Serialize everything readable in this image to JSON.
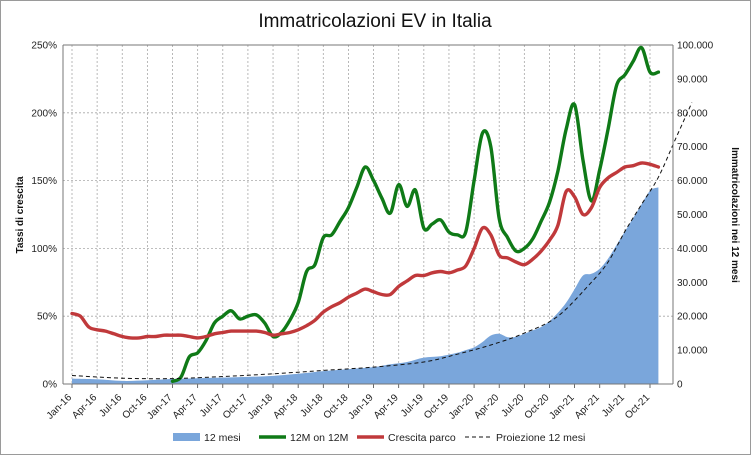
{
  "chart_data": {
    "type": "line",
    "title": "Immatricolazioni EV in Italia",
    "ylabel_left": "Tassi di crescita",
    "ylabel_right": "Immatricolazioni nei 12 mesi",
    "ylim_left": [
      0,
      250
    ],
    "ylim_right": [
      0,
      100000
    ],
    "yticks_left": [
      "0%",
      "50%",
      "100%",
      "150%",
      "200%",
      "250%"
    ],
    "yticks_right": [
      "0",
      "10.000",
      "20.000",
      "30.000",
      "40.000",
      "50.000",
      "60.000",
      "70.000",
      "80.000",
      "90.000",
      "100.000"
    ],
    "xticks": [
      "Jan-16",
      "Apr-16",
      "Jul-16",
      "Oct-16",
      "Jan-17",
      "Apr-17",
      "Jul-17",
      "Oct-17",
      "Jan-18",
      "Apr-18",
      "Jul-18",
      "Oct-18",
      "Jan-19",
      "Apr-19",
      "Jul-19",
      "Oct-19",
      "Jan-20",
      "Apr-20",
      "Jul-20",
      "Oct-20",
      "Jan-21",
      "Apr-21",
      "Jul-21",
      "Oct-21"
    ],
    "legend_position": "bottom",
    "colors": {
      "area": "#7aa6db",
      "green": "#0f7a17",
      "red": "#c0393b",
      "projection": "#111111",
      "grid": "#a8a8a8"
    },
    "series": [
      {
        "name": "12 mesi",
        "kind": "area",
        "axis": "right",
        "points": [
          [
            0,
            1600
          ],
          [
            3,
            1400
          ],
          [
            6,
            900
          ],
          [
            9,
            1100
          ],
          [
            12,
            1500
          ],
          [
            15,
            1700
          ],
          [
            18,
            1900
          ],
          [
            21,
            2100
          ],
          [
            24,
            2400
          ],
          [
            27,
            3000
          ],
          [
            30,
            3800
          ],
          [
            33,
            4400
          ],
          [
            36,
            5000
          ],
          [
            38,
            5800
          ],
          [
            40,
            6500
          ],
          [
            42,
            7800
          ],
          [
            44,
            8200
          ],
          [
            46,
            9200
          ],
          [
            47,
            10000
          ],
          [
            48,
            10800
          ],
          [
            49,
            12400
          ],
          [
            50,
            14300
          ],
          [
            51,
            14800
          ],
          [
            52,
            13800
          ],
          [
            53,
            13900
          ],
          [
            54,
            14800
          ],
          [
            55,
            15800
          ],
          [
            56,
            16800
          ],
          [
            57,
            18500
          ],
          [
            58,
            21000
          ],
          [
            59,
            24000
          ],
          [
            60,
            28000
          ],
          [
            61,
            32000
          ],
          [
            62,
            32500
          ],
          [
            63,
            34000
          ],
          [
            64,
            37000
          ],
          [
            65,
            41000
          ],
          [
            66,
            45000
          ],
          [
            67,
            49000
          ],
          [
            68,
            53000
          ],
          [
            69,
            57000
          ],
          [
            70,
            58000
          ]
        ]
      },
      {
        "name": "12M on 12M",
        "kind": "line",
        "axis": "left",
        "points": [
          [
            12,
            2
          ],
          [
            13,
            5
          ],
          [
            14,
            20
          ],
          [
            15,
            23
          ],
          [
            16,
            32
          ],
          [
            17,
            45
          ],
          [
            18,
            50
          ],
          [
            19,
            54
          ],
          [
            20,
            48
          ],
          [
            21,
            50
          ],
          [
            22,
            51
          ],
          [
            23,
            45
          ],
          [
            24,
            35
          ],
          [
            25,
            38
          ],
          [
            26,
            47
          ],
          [
            27,
            60
          ],
          [
            28,
            83
          ],
          [
            29,
            88
          ],
          [
            30,
            108
          ],
          [
            31,
            110
          ],
          [
            32,
            120
          ],
          [
            33,
            130
          ],
          [
            34,
            145
          ],
          [
            35,
            160
          ],
          [
            36,
            150
          ],
          [
            37,
            137
          ],
          [
            38,
            126
          ],
          [
            39,
            147
          ],
          [
            40,
            131
          ],
          [
            41,
            143
          ],
          [
            42,
            115
          ],
          [
            43,
            118
          ],
          [
            44,
            121
          ],
          [
            45,
            112
          ],
          [
            46,
            110
          ],
          [
            47,
            112
          ],
          [
            48,
            150
          ],
          [
            49,
            185
          ],
          [
            50,
            175
          ],
          [
            51,
            122
          ],
          [
            52,
            108
          ],
          [
            53,
            98
          ],
          [
            54,
            100
          ],
          [
            55,
            107
          ],
          [
            56,
            120
          ],
          [
            57,
            134
          ],
          [
            58,
            157
          ],
          [
            59,
            188
          ],
          [
            60,
            206
          ],
          [
            61,
            165
          ],
          [
            62,
            135
          ],
          [
            63,
            158
          ],
          [
            64,
            188
          ],
          [
            65,
            220
          ],
          [
            66,
            228
          ],
          [
            67,
            238
          ],
          [
            68,
            248
          ],
          [
            69,
            230
          ],
          [
            70,
            230
          ]
        ]
      },
      {
        "name": "Crescita parco",
        "kind": "line",
        "axis": "left",
        "points": [
          [
            0,
            52
          ],
          [
            1,
            50
          ],
          [
            2,
            42
          ],
          [
            3,
            40
          ],
          [
            4,
            39
          ],
          [
            5,
            37
          ],
          [
            6,
            35
          ],
          [
            7,
            34
          ],
          [
            8,
            34
          ],
          [
            9,
            35
          ],
          [
            10,
            35
          ],
          [
            11,
            36
          ],
          [
            12,
            36
          ],
          [
            13,
            36
          ],
          [
            14,
            35
          ],
          [
            15,
            34
          ],
          [
            16,
            35
          ],
          [
            17,
            37
          ],
          [
            18,
            38
          ],
          [
            19,
            39
          ],
          [
            20,
            39
          ],
          [
            21,
            39
          ],
          [
            22,
            39
          ],
          [
            23,
            38
          ],
          [
            24,
            36
          ],
          [
            25,
            37
          ],
          [
            26,
            38
          ],
          [
            27,
            40
          ],
          [
            28,
            43
          ],
          [
            29,
            47
          ],
          [
            30,
            53
          ],
          [
            31,
            57
          ],
          [
            32,
            60
          ],
          [
            33,
            64
          ],
          [
            34,
            67
          ],
          [
            35,
            70
          ],
          [
            36,
            68
          ],
          [
            37,
            66
          ],
          [
            38,
            66
          ],
          [
            39,
            72
          ],
          [
            40,
            76
          ],
          [
            41,
            80
          ],
          [
            42,
            80
          ],
          [
            43,
            82
          ],
          [
            44,
            83
          ],
          [
            45,
            82
          ],
          [
            46,
            84
          ],
          [
            47,
            87
          ],
          [
            48,
            100
          ],
          [
            49,
            115
          ],
          [
            50,
            110
          ],
          [
            51,
            95
          ],
          [
            52,
            93
          ],
          [
            53,
            90
          ],
          [
            54,
            88
          ],
          [
            55,
            92
          ],
          [
            56,
            98
          ],
          [
            57,
            106
          ],
          [
            58,
            117
          ],
          [
            59,
            142
          ],
          [
            60,
            138
          ],
          [
            61,
            125
          ],
          [
            62,
            130
          ],
          [
            63,
            145
          ],
          [
            64,
            152
          ],
          [
            65,
            156
          ],
          [
            66,
            160
          ],
          [
            67,
            161
          ],
          [
            68,
            163
          ],
          [
            69,
            162
          ],
          [
            70,
            160
          ]
        ]
      },
      {
        "name": "Proiezione 12 mesi",
        "kind": "dashed",
        "axis": "right",
        "points": [
          [
            0,
            2500
          ],
          [
            6,
            1700
          ],
          [
            12,
            1600
          ],
          [
            18,
            2200
          ],
          [
            24,
            3000
          ],
          [
            30,
            4000
          ],
          [
            36,
            5000
          ],
          [
            42,
            6500
          ],
          [
            46,
            8800
          ],
          [
            50,
            11500
          ],
          [
            54,
            15000
          ],
          [
            58,
            20000
          ],
          [
            62,
            30000
          ],
          [
            64,
            36000
          ],
          [
            66,
            45000
          ],
          [
            68,
            53000
          ],
          [
            70,
            61000
          ],
          [
            72,
            72000
          ],
          [
            74,
            83000
          ]
        ]
      }
    ]
  }
}
